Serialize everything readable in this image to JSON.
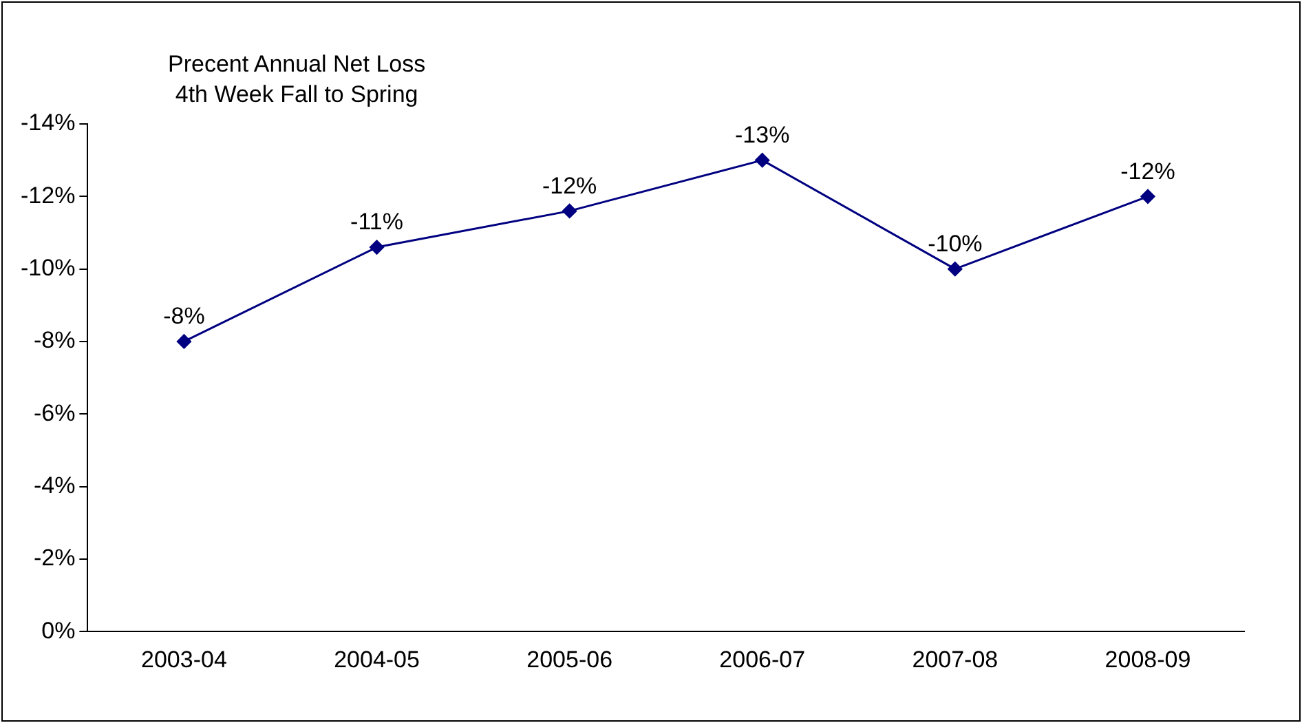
{
  "chart_data": {
    "type": "line",
    "title": "Precent Annual Net Loss",
    "subtitle": "4th Week Fall to Spring",
    "categories": [
      "2003-04",
      "2004-05",
      "2005-06",
      "2006-07",
      "2007-08",
      "2008-09"
    ],
    "series": [
      {
        "color": "#000080",
        "values": [
          -8,
          -10.6,
          -11.6,
          -13,
          -10,
          -12
        ],
        "value_labels": [
          "-8%",
          "-11%",
          "-12%",
          "-13%",
          "-10%",
          "-12%"
        ]
      }
    ],
    "ylim": [
      0,
      -14
    ],
    "yticks": [
      {
        "value": 0,
        "label": "0%"
      },
      {
        "value": -2,
        "label": "-2%"
      },
      {
        "value": -4,
        "label": "-4%"
      },
      {
        "value": -6,
        "label": "-6%"
      },
      {
        "value": -8,
        "label": "-8%"
      },
      {
        "value": -10,
        "label": "-10%"
      },
      {
        "value": -12,
        "label": "-12%"
      },
      {
        "value": -14,
        "label": "-14%"
      }
    ],
    "grid": false,
    "legend": false,
    "marker": "diamond",
    "line_style": "solid"
  }
}
